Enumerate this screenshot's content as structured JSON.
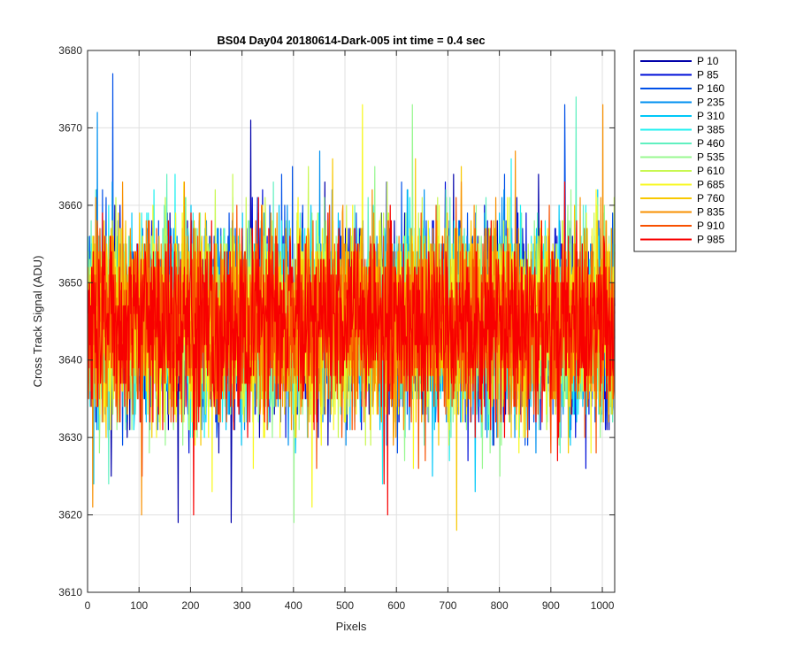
{
  "chart_data": {
    "type": "line",
    "title": "BS04 Day04 20180614-Dark-005 int time = 0.4 sec",
    "xlabel": "Pixels",
    "ylabel": "Cross Track Signal (ADU)",
    "xlim": [
      0,
      1024
    ],
    "ylim": [
      3610,
      3680
    ],
    "xticks": [
      0,
      100,
      200,
      300,
      400,
      500,
      600,
      700,
      800,
      900,
      1000
    ],
    "yticks": [
      3610,
      3620,
      3630,
      3640,
      3650,
      3660,
      3670,
      3680
    ],
    "grid": true,
    "legend_position": "outside-top-right",
    "n_points": 1024,
    "mean_signal": 3645,
    "signal_std": 6,
    "series": [
      {
        "name": "P 10",
        "color": "#0000AA"
      },
      {
        "name": "P 85",
        "color": "#0010D8"
      },
      {
        "name": "P 160",
        "color": "#0050E8"
      },
      {
        "name": "P 235",
        "color": "#0090F0"
      },
      {
        "name": "P 310",
        "color": "#00C8F8"
      },
      {
        "name": "P 385",
        "color": "#20F0F0"
      },
      {
        "name": "P 460",
        "color": "#60F0C0"
      },
      {
        "name": "P 535",
        "color": "#98F890"
      },
      {
        "name": "P 610",
        "color": "#C8F850"
      },
      {
        "name": "P 685",
        "color": "#F8F820"
      },
      {
        "name": "P 760",
        "color": "#F8C800"
      },
      {
        "name": "P 835",
        "color": "#F89000"
      },
      {
        "name": "P 910",
        "color": "#F85000"
      },
      {
        "name": "P 985",
        "color": "#F80000"
      }
    ],
    "annotated_extremes": [
      {
        "series": "P 160",
        "x": 48,
        "y": 3677
      },
      {
        "series": "P 235",
        "x": 18,
        "y": 3672
      },
      {
        "series": "P 10",
        "x": 316,
        "y": 3671
      },
      {
        "series": "P 685",
        "x": 533,
        "y": 3673
      },
      {
        "series": "P 535",
        "x": 630,
        "y": 3673
      },
      {
        "series": "P 160",
        "x": 926,
        "y": 3673
      },
      {
        "series": "P 460",
        "x": 948,
        "y": 3674
      },
      {
        "series": "P 835",
        "x": 1000,
        "y": 3673
      },
      {
        "series": "P 10",
        "x": 175,
        "y": 3619
      },
      {
        "series": "P 10",
        "x": 278,
        "y": 3619
      },
      {
        "series": "P 535",
        "x": 400,
        "y": 3619
      },
      {
        "series": "P 760",
        "x": 716,
        "y": 3618
      },
      {
        "series": "P 835",
        "x": 104,
        "y": 3620
      },
      {
        "series": "P 985",
        "x": 205,
        "y": 3620
      },
      {
        "series": "P 985",
        "x": 582,
        "y": 3620
      }
    ]
  }
}
